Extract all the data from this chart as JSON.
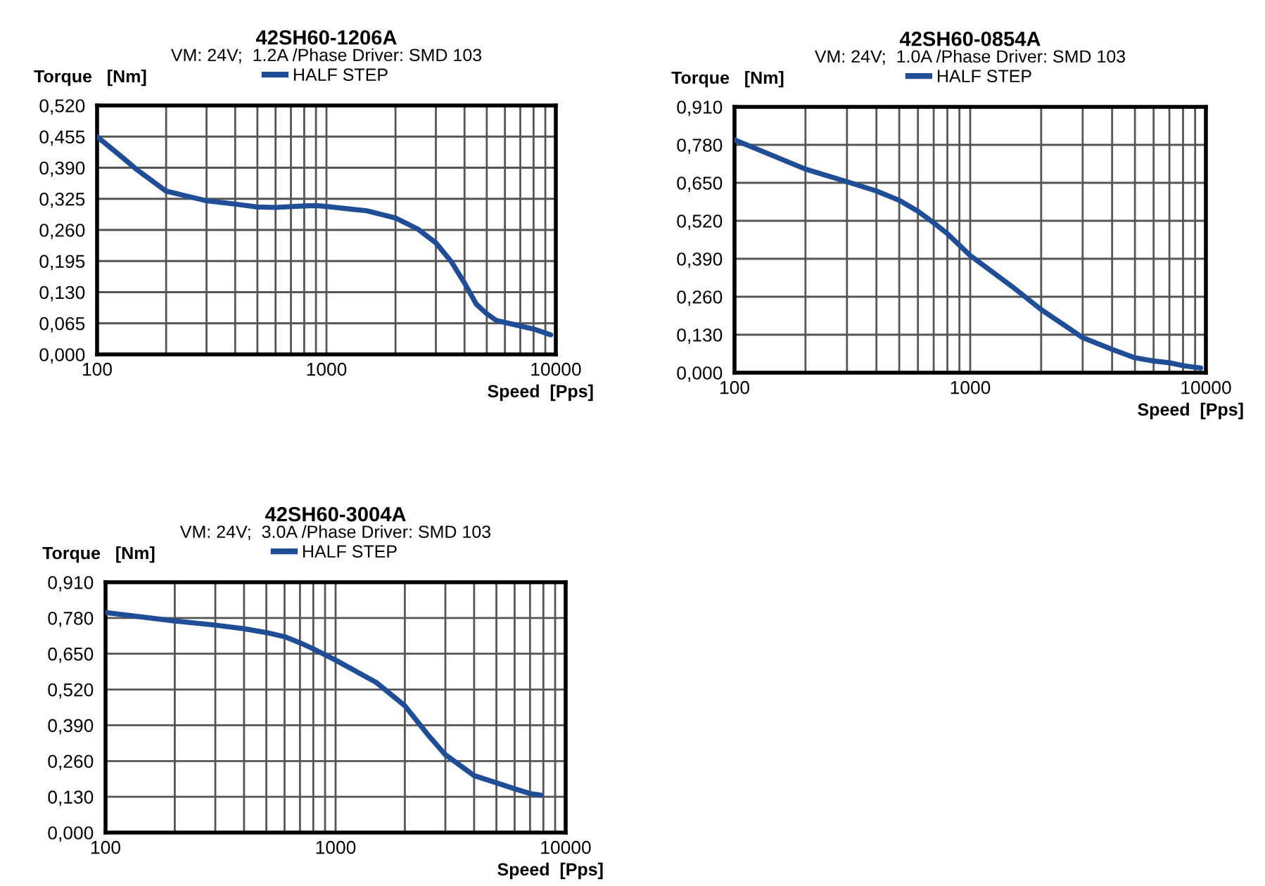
{
  "chart_data": [
    {
      "type": "line",
      "title": "42SH60-1206A",
      "subtitle": "VM: 24V;  1.2A /Phase Driver: SMD 103",
      "xlabel": "Speed  [Pps]",
      "ylabel": "Torque   [Nm]",
      "log": "x",
      "grid": true,
      "legend": "top",
      "marker": "none",
      "line_style": "solid",
      "xlim": [
        100,
        10000
      ],
      "ylim": [
        0,
        0.52
      ],
      "xticks": [
        100,
        {
          "value": 200,
          "label": null
        },
        {
          "value": 300,
          "label": null
        },
        {
          "value": 400,
          "label": null
        },
        {
          "value": 500,
          "label": null
        },
        {
          "value": 600,
          "label": null
        },
        {
          "value": 700,
          "label": null
        },
        {
          "value": 800,
          "label": null
        },
        {
          "value": 900,
          "label": null
        },
        1000,
        {
          "value": 2000,
          "label": null
        },
        {
          "value": 3000,
          "label": null
        },
        {
          "value": 4000,
          "label": null
        },
        {
          "value": 5000,
          "label": null
        },
        {
          "value": 6000,
          "label": null
        },
        {
          "value": 7000,
          "label": null
        },
        {
          "value": 8000,
          "label": null
        },
        {
          "value": 9000,
          "label": null
        },
        10000
      ],
      "yticks": [
        {
          "value": 0,
          "label": "0,000"
        },
        {
          "value": 0.065,
          "label": "0,065"
        },
        {
          "value": 0.13,
          "label": "0,130"
        },
        {
          "value": 0.195,
          "label": "0,195"
        },
        {
          "value": 0.26,
          "label": "0,260"
        },
        {
          "value": 0.325,
          "label": "0,325"
        },
        {
          "value": 0.39,
          "label": "0,390"
        },
        {
          "value": 0.455,
          "label": "0,455"
        },
        {
          "value": 0.52,
          "label": "0,520"
        }
      ],
      "series": [
        {
          "name": "HALF STEP",
          "color": "#1f4e96",
          "x": [
            100,
            130,
            150,
            200,
            300,
            400,
            500,
            600,
            800,
            900,
            1000,
            1500,
            2000,
            2500,
            3000,
            3500,
            4000,
            4500,
            5000,
            5500,
            6500,
            8000,
            9500
          ],
          "values": [
            0.455,
            0.41,
            0.385,
            0.341,
            0.321,
            0.314,
            0.308,
            0.307,
            0.31,
            0.311,
            0.309,
            0.3,
            0.285,
            0.262,
            0.233,
            0.194,
            0.149,
            0.105,
            0.085,
            0.071,
            0.063,
            0.053,
            0.041
          ]
        }
      ]
    },
    {
      "type": "line",
      "title": "42SH60-0854A",
      "subtitle": "VM: 24V;  1.0A /Phase Driver: SMD 103",
      "xlabel": "Speed  [Pps]",
      "ylabel": "Torque   [Nm]",
      "log": "x",
      "grid": true,
      "legend": "top",
      "marker": "none",
      "line_style": "solid",
      "xlim": [
        100,
        10000
      ],
      "ylim": [
        0,
        0.91
      ],
      "xticks": [
        100,
        {
          "value": 200,
          "label": null
        },
        {
          "value": 300,
          "label": null
        },
        {
          "value": 400,
          "label": null
        },
        {
          "value": 500,
          "label": null
        },
        {
          "value": 600,
          "label": null
        },
        {
          "value": 700,
          "label": null
        },
        {
          "value": 800,
          "label": null
        },
        {
          "value": 900,
          "label": null
        },
        1000,
        {
          "value": 2000,
          "label": null
        },
        {
          "value": 3000,
          "label": null
        },
        {
          "value": 4000,
          "label": null
        },
        {
          "value": 5000,
          "label": null
        },
        {
          "value": 6000,
          "label": null
        },
        {
          "value": 7000,
          "label": null
        },
        {
          "value": 8000,
          "label": null
        },
        {
          "value": 9000,
          "label": null
        },
        10000
      ],
      "yticks": [
        {
          "value": 0,
          "label": "0,000"
        },
        {
          "value": 0.13,
          "label": "0,130"
        },
        {
          "value": 0.26,
          "label": "0,260"
        },
        {
          "value": 0.39,
          "label": "0,390"
        },
        {
          "value": 0.52,
          "label": "0,520"
        },
        {
          "value": 0.65,
          "label": "0,650"
        },
        {
          "value": 0.78,
          "label": "0,780"
        },
        {
          "value": 0.91,
          "label": "0,910"
        }
      ],
      "series": [
        {
          "name": "HALF STEP",
          "color": "#1f4e96",
          "x": [
            100,
            200,
            300,
            400,
            500,
            600,
            700,
            800,
            1000,
            1500,
            2000,
            3000,
            4000,
            5000,
            6000,
            7000,
            8000,
            9500
          ],
          "values": [
            0.797,
            0.697,
            0.654,
            0.622,
            0.59,
            0.553,
            0.513,
            0.476,
            0.401,
            0.296,
            0.216,
            0.12,
            0.08,
            0.051,
            0.04,
            0.034,
            0.024,
            0.016
          ]
        }
      ]
    },
    {
      "type": "line",
      "title": "42SH60-3004A",
      "subtitle": "VM: 24V;  3.0A /Phase Driver: SMD 103",
      "xlabel": "Speed  [Pps]",
      "ylabel": "Torque   [Nm]",
      "log": "x",
      "grid": true,
      "legend": "top",
      "marker": "none",
      "line_style": "solid",
      "xlim": [
        100,
        10000
      ],
      "ylim": [
        0,
        0.91
      ],
      "xticks": [
        100,
        {
          "value": 200,
          "label": null
        },
        {
          "value": 300,
          "label": null
        },
        {
          "value": 400,
          "label": null
        },
        {
          "value": 500,
          "label": null
        },
        {
          "value": 600,
          "label": null
        },
        {
          "value": 700,
          "label": null
        },
        {
          "value": 800,
          "label": null
        },
        {
          "value": 900,
          "label": null
        },
        1000,
        {
          "value": 2000,
          "label": null
        },
        {
          "value": 3000,
          "label": null
        },
        {
          "value": 4000,
          "label": null
        },
        {
          "value": 5000,
          "label": null
        },
        {
          "value": 6000,
          "label": null
        },
        {
          "value": 7000,
          "label": null
        },
        {
          "value": 8000,
          "label": null
        },
        {
          "value": 9000,
          "label": null
        },
        10000
      ],
      "yticks": [
        {
          "value": 0,
          "label": "0,000"
        },
        {
          "value": 0.13,
          "label": "0,130"
        },
        {
          "value": 0.26,
          "label": "0,260"
        },
        {
          "value": 0.39,
          "label": "0,390"
        },
        {
          "value": 0.52,
          "label": "0,520"
        },
        {
          "value": 0.65,
          "label": "0,650"
        },
        {
          "value": 0.78,
          "label": "0,780"
        },
        {
          "value": 0.91,
          "label": "0,910"
        }
      ],
      "series": [
        {
          "name": "HALF STEP",
          "color": "#1f4e96",
          "x": [
            100,
            200,
            300,
            400,
            500,
            600,
            700,
            800,
            1000,
            1500,
            2000,
            2500,
            3000,
            4000,
            5000,
            6000,
            7000,
            7800
          ],
          "values": [
            0.8,
            0.769,
            0.754,
            0.741,
            0.727,
            0.712,
            0.69,
            0.668,
            0.627,
            0.546,
            0.461,
            0.359,
            0.283,
            0.207,
            0.181,
            0.159,
            0.142,
            0.136
          ]
        }
      ]
    }
  ]
}
